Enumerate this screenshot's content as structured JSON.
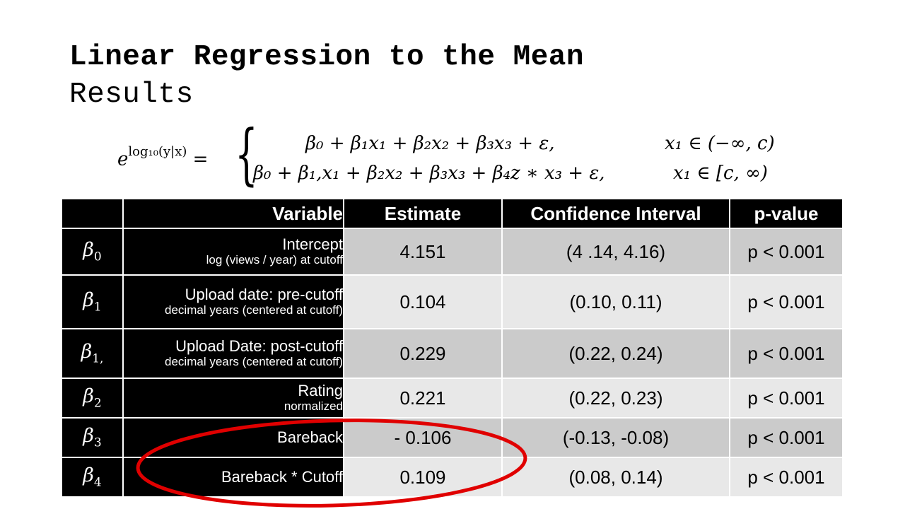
{
  "slide": {
    "title": "Linear Regression to the Mean",
    "subtitle": "Results"
  },
  "equation": {
    "lhs_base": "e",
    "lhs_exponent": "log₁₀(y|x)",
    "equals": "=",
    "brace": "{",
    "row1_expr": "β₀ + β₁x₁ + β₂x₂ + β₃x₃ + ε,",
    "row1_cond": "x₁ ∈ (−∞, c)",
    "row2_expr": "β₀ + β₁,x₁ + β₂x₂ + β₃x₃ + β₄z ∗ x₃ + ε,",
    "row2_cond": "x₁ ∈ [c, ∞)"
  },
  "table": {
    "headers": [
      "",
      "Variable",
      "Estimate",
      "Confidence Interval",
      "p-value"
    ],
    "rows": [
      {
        "coef": "β",
        "coef_sub": "0",
        "variable": "Intercept",
        "note": "log (views / year) at cutoff",
        "estimate": "4.151",
        "ci": "(4 .14, 4.16)",
        "p": "p < 0.001"
      },
      {
        "coef": "β",
        "coef_sub": "1",
        "variable": "Upload date: pre-cutoff",
        "note": "decimal years (centered at cutoff)",
        "estimate": "0.104",
        "ci": "(0.10, 0.11)",
        "p": "p < 0.001"
      },
      {
        "coef": "β",
        "coef_sub": "1,",
        "variable": "Upload Date: post-cutoff",
        "note": "decimal years (centered at cutoff)",
        "estimate": "0.229",
        "ci": "(0.22, 0.24)",
        "p": "p < 0.001"
      },
      {
        "coef": "β",
        "coef_sub": "2",
        "variable": "Rating",
        "note": "normalized",
        "estimate": "0.221",
        "ci": "(0.22, 0.23)",
        "p": "p < 0.001"
      },
      {
        "coef": "β",
        "coef_sub": "3",
        "variable": "Bareback",
        "note": "",
        "estimate": "- 0.106",
        "ci": "(-0.13, -0.08)",
        "p": "p < 0.001"
      },
      {
        "coef": "β",
        "coef_sub": "4",
        "variable": "Bareback * Cutoff",
        "note": "",
        "estimate": "0.109",
        "ci": "(0.08, 0.14)",
        "p": "p < 0.001"
      }
    ]
  },
  "highlight": {
    "color": "#e00000",
    "rows_circled": [
      "Bareback",
      "Bareback * Cutoff"
    ]
  }
}
